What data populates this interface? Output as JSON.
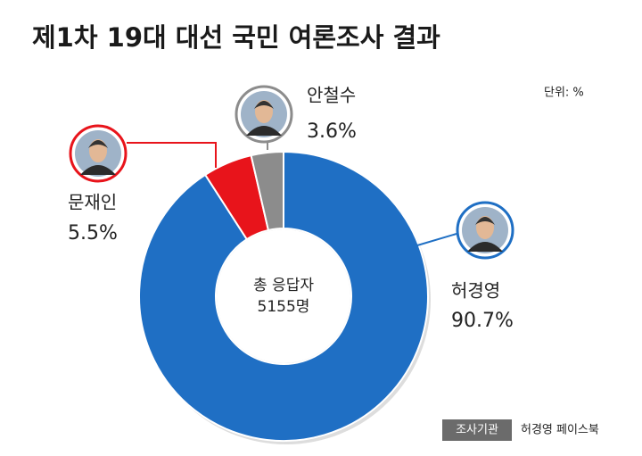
{
  "chart_data": {
    "type": "donut",
    "title": "제1차 19대 대선 국민 여론조사 결과",
    "unit_label": "단위: %",
    "center_text": [
      "총 응답자",
      "5155명"
    ],
    "categories": [
      "허경영",
      "문재인",
      "안철수"
    ],
    "values": [
      90.7,
      5.5,
      3.6
    ],
    "value_labels": [
      "90.7%",
      "5.5%",
      "3.6%"
    ],
    "colors": [
      "#1f6fc4",
      "#e8141b",
      "#8c8c8c"
    ],
    "source": {
      "label": "조사기관",
      "text": "허경영 페이스북"
    }
  }
}
